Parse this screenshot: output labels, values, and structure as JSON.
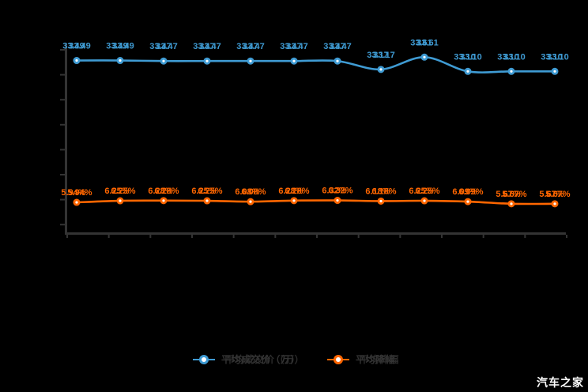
{
  "watermark": "汽车之家",
  "legend": [
    {
      "label": "平均成交价（万）",
      "color": "#3f9bd3"
    },
    {
      "label": "平均降幅",
      "color": "#ff6600"
    }
  ],
  "chart_data": {
    "type": "line",
    "title": "",
    "xlabel": "",
    "ylabel": "",
    "x_tick_labels": [],
    "grid": false,
    "legend_position": "bottom",
    "background": "#000000",
    "axis_color": "#333333",
    "series": [
      {
        "name": "平均成交价（万）",
        "color": "#3f9bd3",
        "values": [
          33.49,
          33.49,
          33.47,
          33.47,
          33.47,
          33.47,
          33.47,
          33.17,
          33.61,
          33.1,
          33.1,
          33.1
        ],
        "labels": [
          "33.49",
          "33.49",
          "33.47",
          "33.47",
          "33.47",
          "33.47",
          "33.47",
          "33.17",
          "33.61",
          "33.10",
          "33.10",
          "33.10"
        ],
        "ylim": [
          27.3,
          34.1
        ]
      },
      {
        "name": "平均降幅",
        "color": "#ff6600",
        "values": [
          5.94,
          6.25,
          6.28,
          6.25,
          6.08,
          6.28,
          6.32,
          6.18,
          6.25,
          6.09,
          5.67,
          5.67
        ],
        "labels": [
          "5.94%",
          "6.25%",
          "6.28%",
          "6.25%",
          "6.08%",
          "6.28%",
          "6.32%",
          "6.18%",
          "6.25%",
          "6.09%",
          "5.67%",
          "5.67%"
        ],
        "ylim": [
          0,
          36.6
        ]
      }
    ]
  }
}
